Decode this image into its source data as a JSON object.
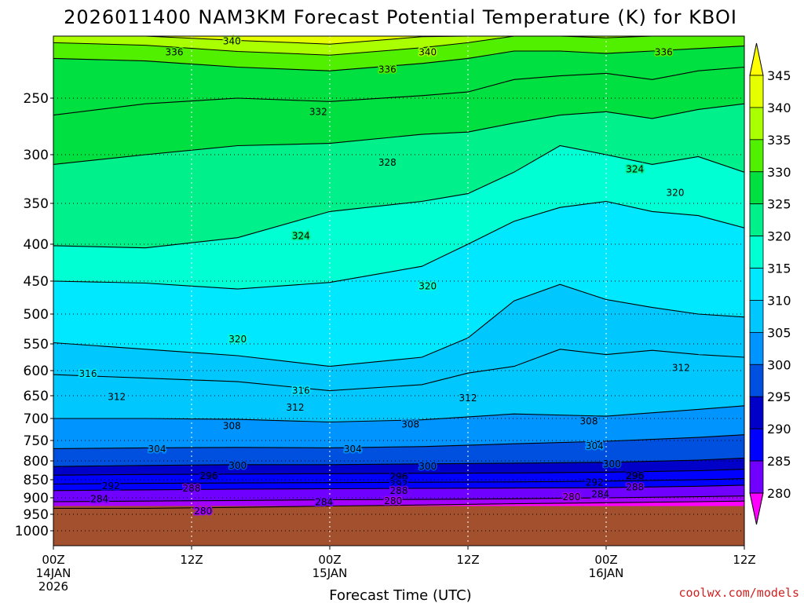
{
  "chart_data": {
    "type": "contour",
    "title": "2026011400 NAM3KM Forecast Potential Temperature (K) for KBOI",
    "xlabel": "Forecast Time (UTC)",
    "credit": "coolwx.com/models",
    "x_ticks": [
      {
        "hour": 0,
        "label": "00Z",
        "date": "14JAN",
        "year": "2026"
      },
      {
        "hour": 12,
        "label": "12Z",
        "date": "",
        "year": ""
      },
      {
        "hour": 24,
        "label": "00Z",
        "date": "15JAN",
        "year": ""
      },
      {
        "hour": 36,
        "label": "12Z",
        "date": "",
        "year": ""
      },
      {
        "hour": 48,
        "label": "00Z",
        "date": "16JAN",
        "year": ""
      },
      {
        "hour": 60,
        "label": "12Z",
        "date": "",
        "year": ""
      }
    ],
    "xlim": [
      0,
      60
    ],
    "y_axis": "pressure (hPa), inverted",
    "y_ticks": [
      250,
      300,
      350,
      400,
      450,
      500,
      550,
      600,
      650,
      700,
      750,
      800,
      850,
      900,
      950,
      1000
    ],
    "ylim": [
      1050,
      200
    ],
    "grid": true,
    "ground_level_hpa": 925,
    "ground_color": "#a2502e",
    "colorbar": {
      "levels": [
        280,
        285,
        290,
        295,
        300,
        305,
        310,
        315,
        320,
        325,
        330,
        335,
        340,
        345
      ],
      "labels": [
        "345",
        "340",
        "335",
        "330",
        "325",
        "320",
        "315",
        "310",
        "305",
        "300",
        "295",
        "290",
        "285",
        "280"
      ],
      "colors": [
        "#ff00ff",
        "#a300ff",
        "#7000ff",
        "#0000ff",
        "#0000c8",
        "#0050e0",
        "#0094ff",
        "#00c8ff",
        "#00e8ff",
        "#00ffd2",
        "#00f08c",
        "#00e040",
        "#50f000",
        "#aaff00",
        "#e6ff00",
        "#ffff00"
      ]
    },
    "contours": [
      {
        "value": 280,
        "p": [
          [
            0,
            932
          ],
          [
            8,
            932
          ],
          [
            16,
            929
          ],
          [
            24,
            925
          ],
          [
            32,
            922
          ],
          [
            40,
            918
          ],
          [
            48,
            915
          ],
          [
            56,
            912
          ],
          [
            60,
            910
          ]
        ]
      },
      {
        "value": 284,
        "p": [
          [
            0,
            912
          ],
          [
            8,
            910
          ],
          [
            16,
            908
          ],
          [
            24,
            906
          ],
          [
            32,
            905
          ],
          [
            40,
            903
          ],
          [
            48,
            900
          ],
          [
            56,
            897
          ],
          [
            60,
            895
          ]
        ]
      },
      {
        "value": 288,
        "p": [
          [
            0,
            880
          ],
          [
            8,
            878
          ],
          [
            16,
            876
          ],
          [
            24,
            875
          ],
          [
            32,
            874
          ],
          [
            40,
            873
          ],
          [
            48,
            872
          ],
          [
            56,
            868
          ],
          [
            60,
            865
          ]
        ]
      },
      {
        "value": 292,
        "p": [
          [
            0,
            862
          ],
          [
            8,
            860
          ],
          [
            16,
            859
          ],
          [
            24,
            858
          ],
          [
            32,
            857
          ],
          [
            40,
            856
          ],
          [
            48,
            854
          ],
          [
            56,
            850
          ],
          [
            60,
            847
          ]
        ]
      },
      {
        "value": 296,
        "p": [
          [
            0,
            838
          ],
          [
            8,
            836
          ],
          [
            16,
            835
          ],
          [
            24,
            834
          ],
          [
            32,
            833
          ],
          [
            40,
            832
          ],
          [
            48,
            830
          ],
          [
            56,
            826
          ],
          [
            60,
            822
          ]
        ]
      },
      {
        "value": 300,
        "p": [
          [
            0,
            815
          ],
          [
            8,
            812
          ],
          [
            16,
            810
          ],
          [
            24,
            810
          ],
          [
            32,
            808
          ],
          [
            40,
            806
          ],
          [
            48,
            804
          ],
          [
            56,
            798
          ],
          [
            60,
            793
          ]
        ]
      },
      {
        "value": 304,
        "p": [
          [
            0,
            770
          ],
          [
            8,
            768
          ],
          [
            16,
            767
          ],
          [
            24,
            768
          ],
          [
            32,
            765
          ],
          [
            40,
            758
          ],
          [
            48,
            752
          ],
          [
            56,
            743
          ],
          [
            60,
            737
          ]
        ]
      },
      {
        "value": 308,
        "p": [
          [
            0,
            700
          ],
          [
            8,
            700
          ],
          [
            16,
            702
          ],
          [
            24,
            708
          ],
          [
            32,
            703
          ],
          [
            40,
            690
          ],
          [
            48,
            695
          ],
          [
            56,
            680
          ],
          [
            60,
            672
          ]
        ]
      },
      {
        "value": 312,
        "p": [
          [
            0,
            608
          ],
          [
            8,
            615
          ],
          [
            16,
            622
          ],
          [
            24,
            640
          ],
          [
            32,
            628
          ],
          [
            36,
            605
          ],
          [
            40,
            592
          ],
          [
            44,
            560
          ],
          [
            48,
            570
          ],
          [
            52,
            562
          ],
          [
            56,
            570
          ],
          [
            60,
            575
          ]
        ]
      },
      {
        "value": 316,
        "p": [
          [
            0,
            548
          ],
          [
            8,
            560
          ],
          [
            16,
            572
          ],
          [
            24,
            592
          ],
          [
            32,
            575
          ],
          [
            36,
            540
          ],
          [
            40,
            480
          ],
          [
            44,
            455
          ],
          [
            48,
            478
          ],
          [
            52,
            490
          ],
          [
            56,
            500
          ],
          [
            60,
            505
          ]
        ]
      },
      {
        "value": 320,
        "p": [
          [
            0,
            450
          ],
          [
            8,
            453
          ],
          [
            16,
            462
          ],
          [
            24,
            452
          ],
          [
            32,
            430
          ],
          [
            36,
            400
          ],
          [
            40,
            372
          ],
          [
            44,
            355
          ],
          [
            48,
            348
          ],
          [
            52,
            360
          ],
          [
            56,
            365
          ],
          [
            60,
            380
          ]
        ]
      },
      {
        "value": 324,
        "p": [
          [
            0,
            402
          ],
          [
            8,
            405
          ],
          [
            16,
            392
          ],
          [
            24,
            360
          ],
          [
            32,
            348
          ],
          [
            36,
            340
          ],
          [
            40,
            318
          ],
          [
            44,
            292
          ],
          [
            48,
            300
          ],
          [
            52,
            310
          ],
          [
            56,
            302
          ],
          [
            60,
            318
          ]
        ]
      },
      {
        "value": 328,
        "p": [
          [
            0,
            310
          ],
          [
            8,
            300
          ],
          [
            16,
            292
          ],
          [
            24,
            290
          ],
          [
            32,
            282
          ],
          [
            36,
            280
          ],
          [
            40,
            272
          ],
          [
            44,
            265
          ],
          [
            48,
            262
          ],
          [
            52,
            268
          ],
          [
            56,
            260
          ],
          [
            60,
            255
          ]
        ]
      },
      {
        "value": 332,
        "p": [
          [
            0,
            265
          ],
          [
            8,
            255
          ],
          [
            16,
            250
          ],
          [
            24,
            253
          ],
          [
            32,
            248
          ],
          [
            36,
            245
          ],
          [
            40,
            235
          ],
          [
            44,
            232
          ],
          [
            48,
            230
          ],
          [
            52,
            235
          ],
          [
            56,
            228
          ],
          [
            60,
            225
          ]
        ]
      },
      {
        "value": 336,
        "p": [
          [
            0,
            218
          ],
          [
            8,
            220
          ],
          [
            16,
            225
          ],
          [
            24,
            228
          ],
          [
            32,
            222
          ],
          [
            36,
            218
          ],
          [
            40,
            212
          ],
          [
            44,
            212
          ],
          [
            48,
            214
          ],
          [
            52,
            212
          ],
          [
            56,
            210
          ],
          [
            60,
            208
          ]
        ]
      }
    ],
    "contour_labels": [
      {
        "text": "340",
        "hour": 15.5,
        "p": 204
      },
      {
        "text": "336",
        "hour": 10.5,
        "p": 213
      },
      {
        "text": "336",
        "hour": 29,
        "p": 227
      },
      {
        "text": "340",
        "hour": 32.5,
        "p": 213
      },
      {
        "text": "336",
        "hour": 53,
        "p": 213
      },
      {
        "text": "332",
        "hour": 23,
        "p": 262
      },
      {
        "text": "328",
        "hour": 29,
        "p": 308
      },
      {
        "text": "324",
        "hour": 50.5,
        "p": 315
      },
      {
        "text": "320",
        "hour": 54,
        "p": 339
      },
      {
        "text": "324",
        "hour": 21.5,
        "p": 390
      },
      {
        "text": "320",
        "hour": 32.5,
        "p": 458
      },
      {
        "text": "320",
        "hour": 16,
        "p": 542
      },
      {
        "text": "316",
        "hour": 3,
        "p": 606
      },
      {
        "text": "316",
        "hour": 21.5,
        "p": 640
      },
      {
        "text": "312",
        "hour": 5.5,
        "p": 653
      },
      {
        "text": "312",
        "hour": 21,
        "p": 676
      },
      {
        "text": "312",
        "hour": 36,
        "p": 655
      },
      {
        "text": "312",
        "hour": 54.5,
        "p": 595
      },
      {
        "text": "308",
        "hour": 15.5,
        "p": 717
      },
      {
        "text": "308",
        "hour": 31,
        "p": 713
      },
      {
        "text": "308",
        "hour": 46.5,
        "p": 706
      },
      {
        "text": "304",
        "hour": 9,
        "p": 771
      },
      {
        "text": "304",
        "hour": 26,
        "p": 771
      },
      {
        "text": "304",
        "hour": 47,
        "p": 763
      },
      {
        "text": "300",
        "hour": 16,
        "p": 812
      },
      {
        "text": "300",
        "hour": 32.5,
        "p": 815
      },
      {
        "text": "300",
        "hour": 48.5,
        "p": 808
      },
      {
        "text": "296",
        "hour": 13.5,
        "p": 840
      },
      {
        "text": "296",
        "hour": 30,
        "p": 842
      },
      {
        "text": "296",
        "hour": 50.5,
        "p": 840
      },
      {
        "text": "292",
        "hour": 5,
        "p": 867
      },
      {
        "text": "292",
        "hour": 30,
        "p": 862
      },
      {
        "text": "292",
        "hour": 47,
        "p": 858
      },
      {
        "text": "288",
        "hour": 12,
        "p": 874
      },
      {
        "text": "288",
        "hour": 30,
        "p": 880
      },
      {
        "text": "288",
        "hour": 50.5,
        "p": 871
      },
      {
        "text": "284",
        "hour": 4,
        "p": 903
      },
      {
        "text": "284",
        "hour": 23.5,
        "p": 913
      },
      {
        "text": "284",
        "hour": 47.5,
        "p": 890
      },
      {
        "text": "280",
        "hour": 29.5,
        "p": 910
      },
      {
        "text": "280",
        "hour": 45,
        "p": 898
      },
      {
        "text": "280",
        "hour": 13,
        "p": 940
      }
    ]
  }
}
